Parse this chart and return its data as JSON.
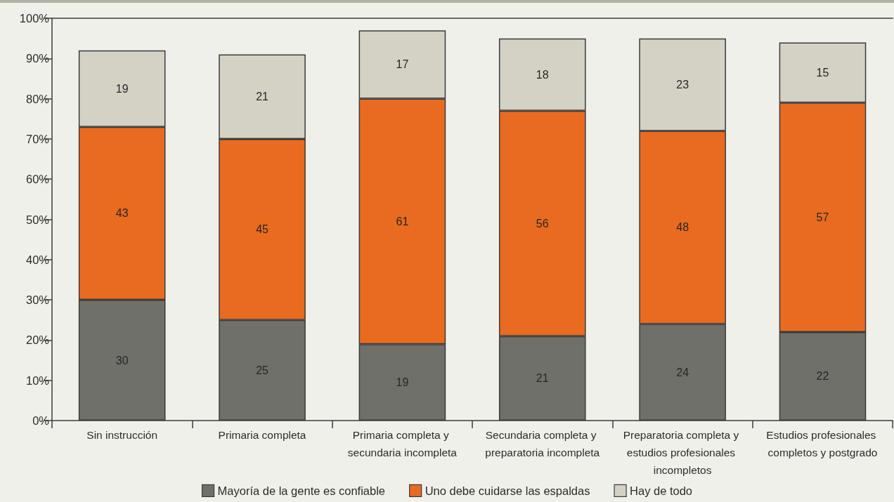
{
  "chart_data": {
    "type": "bar",
    "stacked": true,
    "categories": [
      "Sin instrucción",
      "Primaria completa",
      "Primaria completa y secundaria incompleta",
      "Secundaria completa y preparatoria incompleta",
      "Preparatoria completa y estudios profesionales incompletos",
      "Estudios profesionales completos y postgrado"
    ],
    "series": [
      {
        "name": "Mayoría de la gente es confiable",
        "color": "#70706a",
        "values": [
          30,
          25,
          19,
          21,
          24,
          22
        ]
      },
      {
        "name": "Uno debe cuidarse las espaldas",
        "color": "#e96b20",
        "values": [
          43,
          45,
          61,
          56,
          48,
          57
        ]
      },
      {
        "name": "Hay de todo",
        "color": "#d4d2c5",
        "values": [
          19,
          21,
          17,
          18,
          23,
          15
        ]
      }
    ],
    "ylim": [
      0,
      100
    ],
    "yticks": [
      {
        "value": 0,
        "label": "0%"
      },
      {
        "value": 10,
        "label": "10%"
      },
      {
        "value": 20,
        "label": "20%"
      },
      {
        "value": 30,
        "label": "30%"
      },
      {
        "value": 40,
        "label": "40%"
      },
      {
        "value": 50,
        "label": "50%"
      },
      {
        "value": 60,
        "label": "60%"
      },
      {
        "value": 70,
        "label": "70%"
      },
      {
        "value": 80,
        "label": "80%"
      },
      {
        "value": 90,
        "label": "90%"
      },
      {
        "value": 100,
        "label": "100%"
      }
    ],
    "data_labels": true,
    "grid": false,
    "legend": "bottom"
  }
}
